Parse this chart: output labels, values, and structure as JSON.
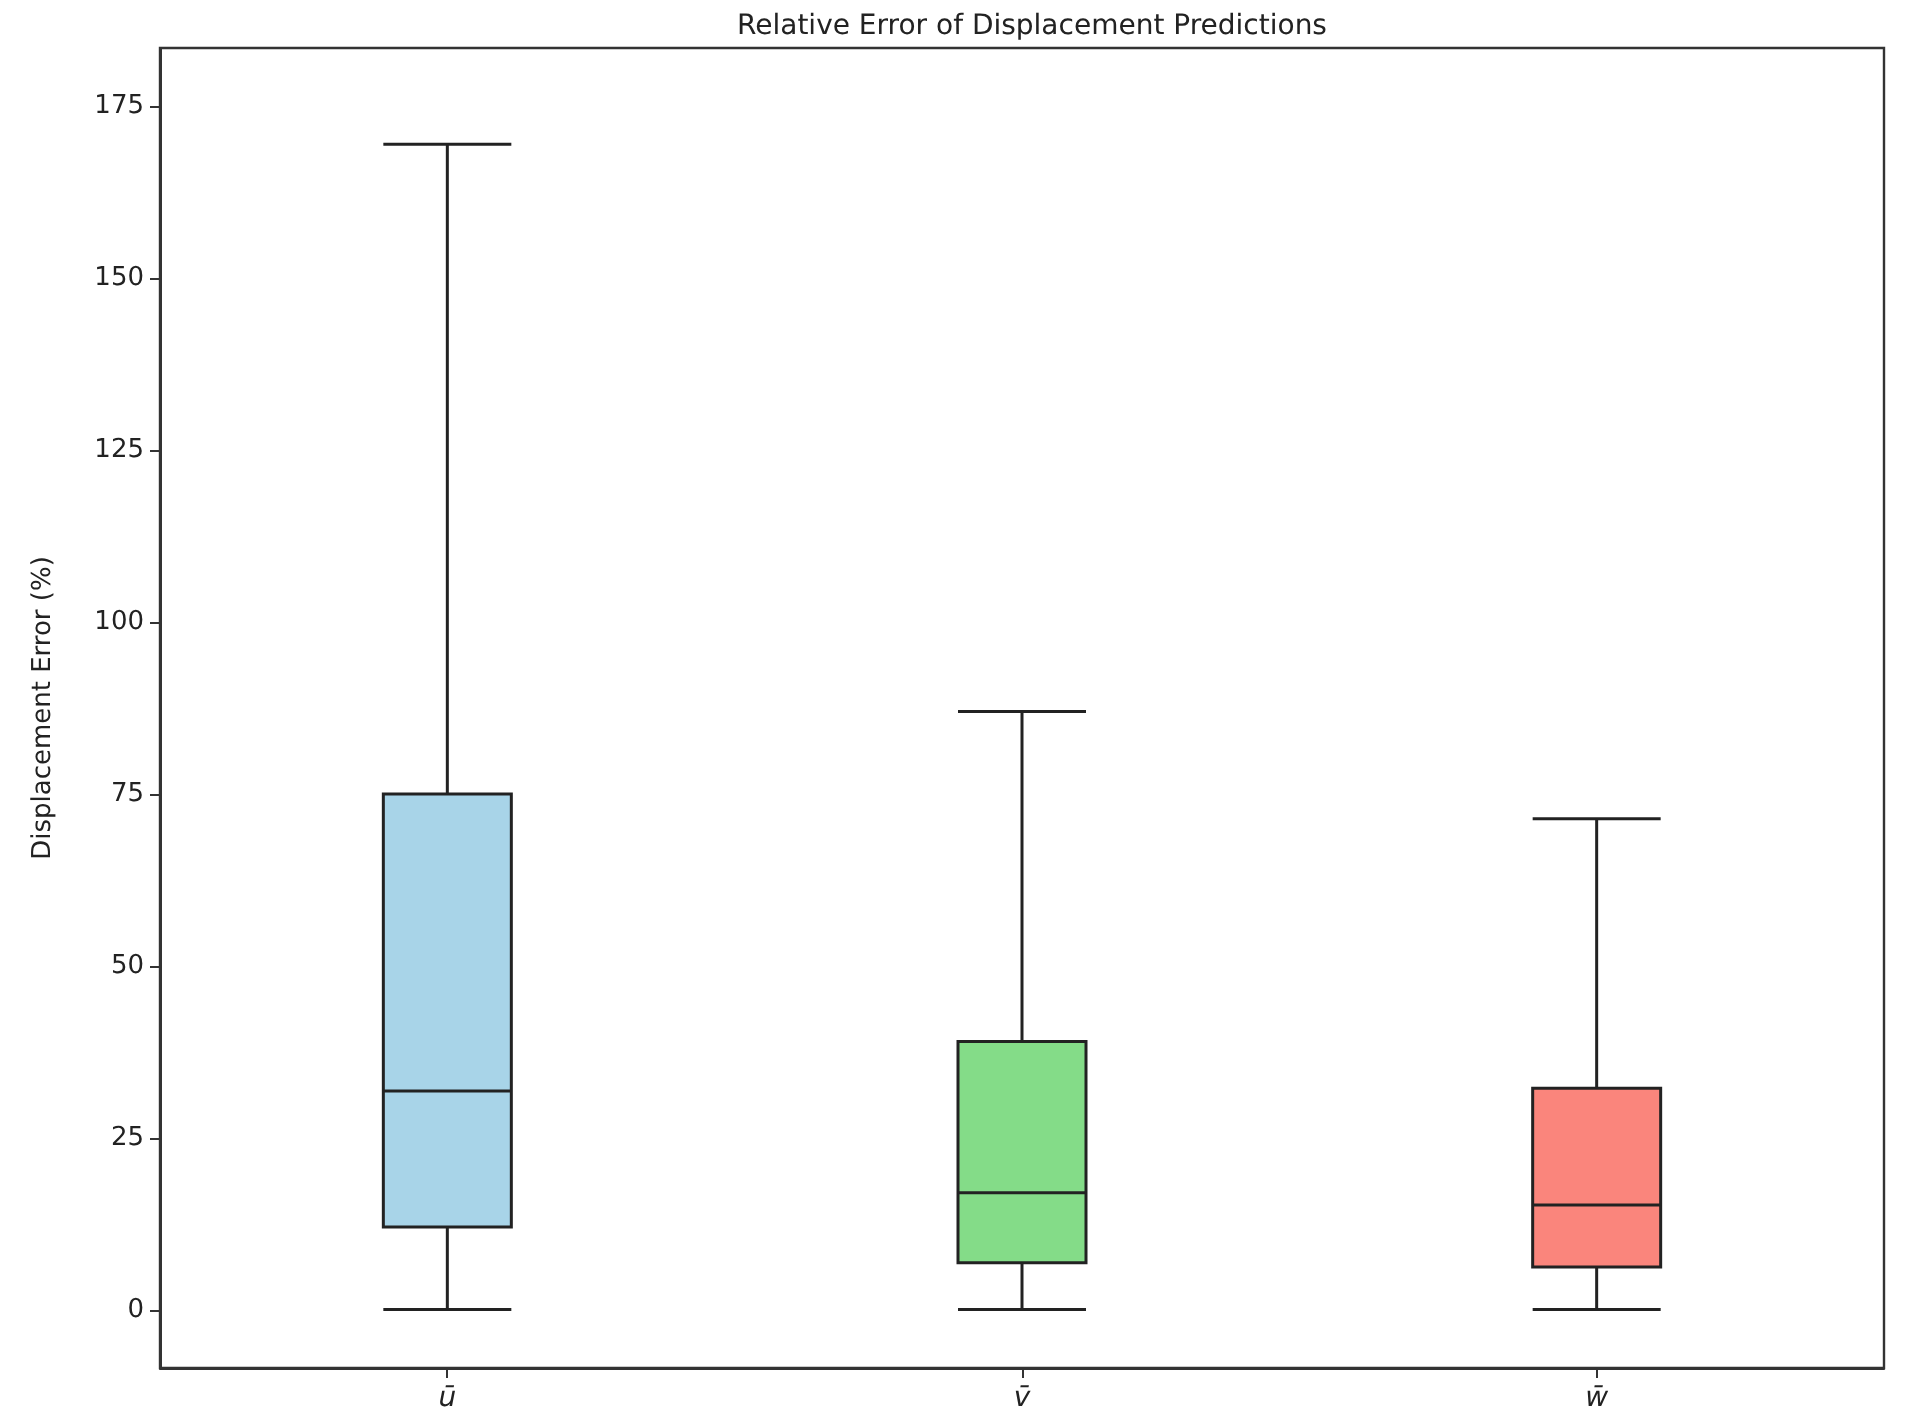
{
  "chart_data": {
    "type": "box",
    "title": "Relative Error of Displacement Predictions",
    "ylabel": "Displacement Error (%)",
    "categories": [
      "ū",
      "v̄",
      "w̄"
    ],
    "boxes": [
      {
        "low": 0,
        "q1": 12,
        "median": 31.8,
        "q3": 75,
        "high": 169.5
      },
      {
        "low": 0,
        "q1": 6.8,
        "median": 17,
        "q3": 39,
        "high": 87
      },
      {
        "low": 0,
        "q1": 6.2,
        "median": 15.2,
        "q3": 32.2,
        "high": 71.4
      }
    ],
    "colors": [
      "#a8d4e8",
      "#84dc88",
      "#fa857c"
    ],
    "ylim": [
      -8.5,
      183.5
    ],
    "yticks": [
      0,
      25,
      50,
      75,
      100,
      125,
      150,
      175
    ]
  }
}
